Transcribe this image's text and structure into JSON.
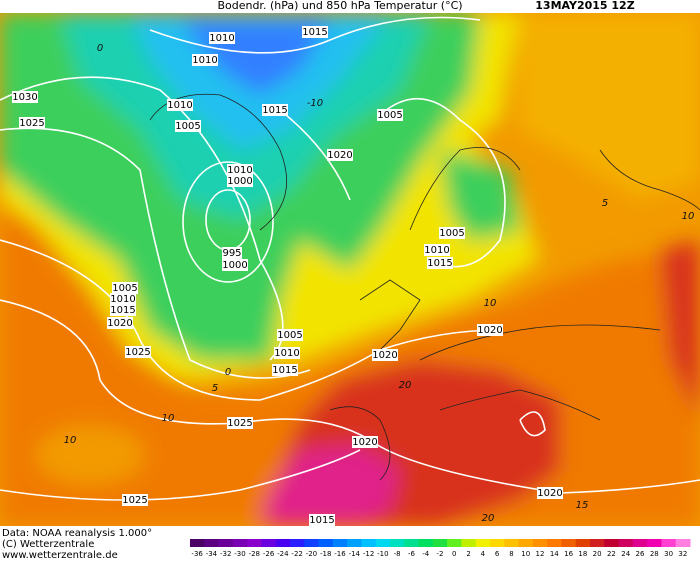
{
  "header": {
    "title": "Bodendr. (hPa) und 850 hPa Temperatur (°C)",
    "date": "13MAY2015 12Z"
  },
  "footer": {
    "lines": [
      "Data: NOAA reanalysis 1.000°",
      "(C) Wetterzentrale",
      "www.wetterzentrale.de"
    ]
  },
  "map": {
    "isobar_labels": [
      "1015",
      "1010",
      "1010",
      "1030",
      "1025",
      "1010",
      "1005",
      "1015",
      "1005",
      "1020",
      "1010",
      "1000",
      "995",
      "1000",
      "1005",
      "1010",
      "1015",
      "1005",
      "1010",
      "1015",
      "1020",
      "1025",
      "1005",
      "1010",
      "1015",
      "1020",
      "1020",
      "1025",
      "1020",
      "1025",
      "1020",
      "1015"
    ],
    "temperature_labels": [
      "0",
      "-10",
      "5",
      "10",
      "10",
      "5",
      "0",
      "10",
      "10",
      "20",
      "15",
      "20"
    ]
  },
  "colorbar": {
    "ticks": [
      -36,
      -34,
      -32,
      -30,
      -28,
      -26,
      -24,
      -22,
      -20,
      -18,
      -16,
      -14,
      -12,
      -10,
      -8,
      -6,
      -4,
      -2,
      0,
      2,
      4,
      6,
      8,
      10,
      12,
      14,
      16,
      18,
      20,
      22,
      24,
      26,
      28,
      30,
      32
    ],
    "colors": [
      "#4b0066",
      "#5a0080",
      "#6a0099",
      "#7a00b3",
      "#8a00cc",
      "#6a00e0",
      "#4a00f0",
      "#2a20ff",
      "#1040ff",
      "#0060ff",
      "#0080ff",
      "#00a0ff",
      "#00c0ff",
      "#00d8f0",
      "#00e0c0",
      "#00e090",
      "#00e060",
      "#20e040",
      "#60f020",
      "#c0f000",
      "#f0f000",
      "#ffd800",
      "#ffc000",
      "#ffa800",
      "#ff9000",
      "#ff7800",
      "#f06000",
      "#e04000",
      "#d02020",
      "#c00030",
      "#d00060",
      "#e00090",
      "#f000b0",
      "#ff40d0",
      "#ff80e0"
    ]
  }
}
